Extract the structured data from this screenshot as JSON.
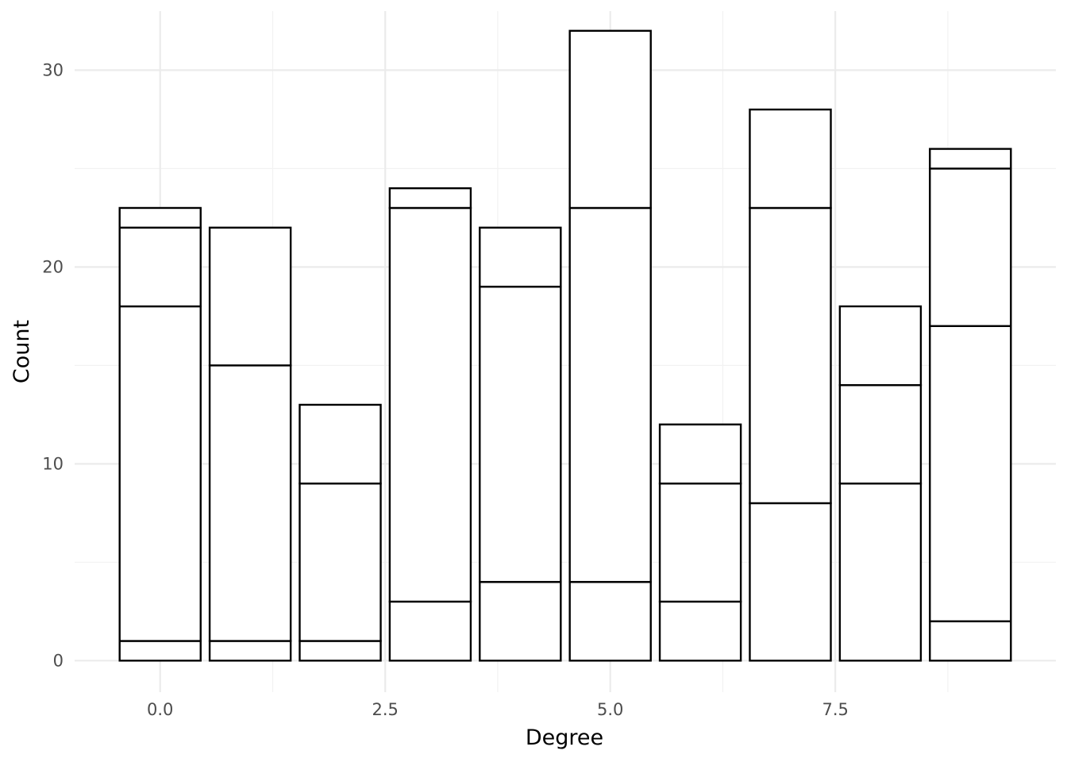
{
  "chart_data": {
    "type": "bar",
    "stacked": true,
    "xlabel": "Degree",
    "ylabel": "Count",
    "xlim": [
      -0.95,
      9.95
    ],
    "ylim": [
      -1.6,
      33.0
    ],
    "x_ticks": [
      0.0,
      2.5,
      5.0,
      7.5
    ],
    "x_tick_labels": [
      "0.0",
      "2.5",
      "5.0",
      "7.5"
    ],
    "x_minor_ticks": [
      1.25,
      3.75,
      6.25,
      8.75
    ],
    "y_ticks": [
      0,
      10,
      20,
      30
    ],
    "y_tick_labels": [
      "0",
      "10",
      "20",
      "30"
    ],
    "y_minor_ticks": [
      5,
      15,
      25
    ],
    "grid": true,
    "bar_width": 0.9,
    "fill_color": "#ffffff",
    "outline_color": "#000000",
    "bars": [
      {
        "x": 0,
        "segment_tops": [
          1,
          18,
          22,
          23
        ]
      },
      {
        "x": 1,
        "segment_tops": [
          1,
          15,
          22
        ]
      },
      {
        "x": 2,
        "segment_tops": [
          1,
          9,
          13
        ]
      },
      {
        "x": 3,
        "segment_tops": [
          3,
          23,
          24
        ]
      },
      {
        "x": 4,
        "segment_tops": [
          4,
          19,
          22
        ]
      },
      {
        "x": 5,
        "segment_tops": [
          4,
          23,
          32
        ]
      },
      {
        "x": 6,
        "segment_tops": [
          3,
          9,
          12
        ]
      },
      {
        "x": 7,
        "segment_tops": [
          8,
          23,
          28
        ]
      },
      {
        "x": 8,
        "segment_tops": [
          9,
          14,
          18
        ]
      },
      {
        "x": 9,
        "segment_tops": [
          2,
          17,
          25,
          26
        ]
      }
    ]
  }
}
